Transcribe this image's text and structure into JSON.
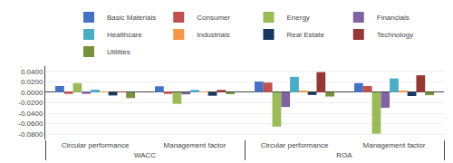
{
  "chart_data": {
    "type": "bar",
    "categories": [
      "Circular performance",
      "Management factor",
      "Circular performance",
      "Management factor"
    ],
    "annotations": [
      "WACC",
      "ROA"
    ],
    "series": [
      {
        "name": "Basic Materials",
        "color": "#4472C4",
        "values": [
          0.012,
          0.0115,
          0.0205,
          0.0175
        ]
      },
      {
        "name": "Consumer",
        "color": "#C0504D",
        "values": [
          -0.003,
          -0.003,
          0.0185,
          0.012
        ]
      },
      {
        "name": "Energy",
        "color": "#9BBB59",
        "values": [
          0.0175,
          -0.022,
          -0.0655,
          -0.079
        ]
      },
      {
        "name": "Financials",
        "color": "#8064A2",
        "values": [
          -0.003,
          -0.004,
          -0.028,
          -0.0295
        ]
      },
      {
        "name": "Healthcare",
        "color": "#4BACC6",
        "values": [
          0.005,
          0.0045,
          0.0295,
          0.0265
        ]
      },
      {
        "name": "Industrials",
        "color": "#F79646",
        "values": [
          0.0005,
          0.001,
          0.003,
          0.003
        ]
      },
      {
        "name": "Real Estate",
        "color": "#17375E",
        "values": [
          -0.006,
          -0.0065,
          -0.005,
          -0.007
        ]
      },
      {
        "name": "Technology",
        "color": "#953735",
        "values": [
          0.0005,
          0.0045,
          0.0385,
          0.0325
        ]
      },
      {
        "name": "Utilities",
        "color": "#76933C",
        "values": [
          -0.011,
          -0.0035,
          -0.008,
          -0.0055
        ]
      }
    ],
    "ylim": [
      -0.09,
      0.05
    ],
    "yticks": [
      {
        "value": -0.08,
        "label": "-0.0800"
      },
      {
        "value": -0.06,
        "label": "-0.0600"
      },
      {
        "value": -0.04,
        "label": "-0.0400"
      },
      {
        "value": -0.02,
        "label": "-0.0200"
      },
      {
        "value": 0,
        "label": "0.0000"
      },
      {
        "value": 0.02,
        "label": "0.0200"
      },
      {
        "value": 0.04,
        "label": "0.0400"
      }
    ],
    "grid": true
  }
}
